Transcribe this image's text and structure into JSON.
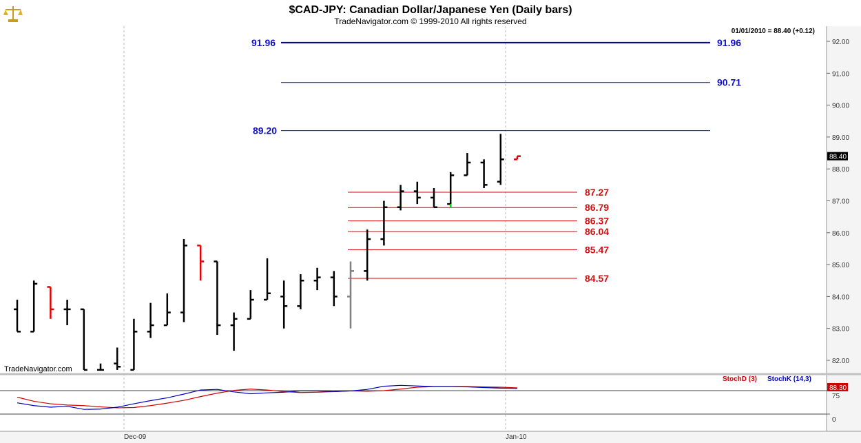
{
  "header": {
    "title": "$CAD-JPY:  Canadian Dollar/Japanese Yen  (Daily bars)",
    "subtitle": "TradeNavigator.com © 1999-2010 All rights reserved",
    "quote": "01/01/2010 = 88.40 (+0.12)",
    "watermark": "TradeNavigator.com",
    "logo_icon": "scales-icon"
  },
  "colors": {
    "bar_up": "#000000",
    "bar_down": "#e00000",
    "bar_neutral": "#808080",
    "bar_green": "#00e000",
    "resistance": "#0000a8",
    "support": "#e00000",
    "stoch_d": "#d00000",
    "stoch_k": "#0000c0"
  },
  "chart_data": {
    "type": "ohlc",
    "title": "$CAD-JPY:  Canadian Dollar/Japanese Yen  (Daily bars)",
    "price_axis": {
      "ylim": [
        81.6,
        92.3
      ],
      "ticks": [
        "92.00",
        "91.00",
        "90.00",
        "89.00",
        "88.00",
        "87.00",
        "86.00",
        "85.00",
        "84.00",
        "83.00",
        "82.00"
      ],
      "last_price_label": "88.40"
    },
    "x_axis": {
      "tick_labels": [
        "Dec-09",
        "Jan-10"
      ]
    },
    "bars": [
      {
        "o": 83.6,
        "h": 83.9,
        "l": 82.9,
        "c": 82.9,
        "color": "black"
      },
      {
        "o": 82.9,
        "h": 84.5,
        "l": 82.9,
        "c": 84.4,
        "color": "black"
      },
      {
        "o": 84.3,
        "h": 84.3,
        "l": 83.3,
        "c": 83.6,
        "color": "red"
      },
      {
        "o": 83.6,
        "h": 83.9,
        "l": 83.1,
        "c": 83.6,
        "color": "black"
      },
      {
        "o": 83.6,
        "h": 83.6,
        "l": 81.7,
        "c": 81.7,
        "color": "black"
      },
      {
        "o": 81.7,
        "h": 81.9,
        "l": 81.7,
        "c": 81.7,
        "color": "black"
      },
      {
        "o": 81.9,
        "h": 82.4,
        "l": 81.7,
        "c": 81.8,
        "color": "black"
      },
      {
        "o": 81.7,
        "h": 83.3,
        "l": 81.7,
        "c": 82.9,
        "color": "black"
      },
      {
        "o": 82.9,
        "h": 83.8,
        "l": 82.7,
        "c": 83.1,
        "color": "black"
      },
      {
        "o": 83.1,
        "h": 84.1,
        "l": 83.1,
        "c": 83.5,
        "color": "black"
      },
      {
        "o": 83.5,
        "h": 85.8,
        "l": 83.2,
        "c": 85.6,
        "color": "black"
      },
      {
        "o": 85.6,
        "h": 85.6,
        "l": 84.5,
        "c": 85.1,
        "color": "red"
      },
      {
        "o": 85.1,
        "h": 85.1,
        "l": 82.8,
        "c": 83.1,
        "color": "black"
      },
      {
        "o": 83.1,
        "h": 83.5,
        "l": 82.3,
        "c": 83.3,
        "color": "black"
      },
      {
        "o": 83.3,
        "h": 84.2,
        "l": 83.3,
        "c": 83.9,
        "color": "black"
      },
      {
        "o": 83.9,
        "h": 85.2,
        "l": 83.9,
        "c": 84.1,
        "color": "black"
      },
      {
        "o": 84.0,
        "h": 84.5,
        "l": 83.0,
        "c": 83.7,
        "color": "black"
      },
      {
        "o": 83.7,
        "h": 84.7,
        "l": 83.6,
        "c": 84.5,
        "color": "black"
      },
      {
        "o": 84.5,
        "h": 84.9,
        "l": 84.2,
        "c": 84.6,
        "color": "black"
      },
      {
        "o": 84.6,
        "h": 84.8,
        "l": 83.7,
        "c": 84.0,
        "color": "black"
      },
      {
        "o": 84.0,
        "h": 85.1,
        "l": 83.0,
        "c": 84.8,
        "color": "gray"
      },
      {
        "o": 84.8,
        "h": 86.1,
        "l": 84.5,
        "c": 85.8,
        "color": "black"
      },
      {
        "o": 85.8,
        "h": 87.0,
        "l": 85.6,
        "c": 86.8,
        "color": "black"
      },
      {
        "o": 86.8,
        "h": 87.5,
        "l": 86.7,
        "c": 87.3,
        "color": "black"
      },
      {
        "o": 87.3,
        "h": 87.6,
        "l": 86.9,
        "c": 87.1,
        "color": "black"
      },
      {
        "o": 87.1,
        "h": 87.4,
        "l": 86.8,
        "c": 86.8,
        "color": "black"
      },
      {
        "o": 86.9,
        "h": 87.9,
        "l": 86.8,
        "c": 87.8,
        "color": "black",
        "low_segment_color": "green"
      },
      {
        "o": 87.8,
        "h": 88.5,
        "l": 87.8,
        "c": 88.2,
        "color": "black"
      },
      {
        "o": 88.2,
        "h": 88.3,
        "l": 87.4,
        "c": 87.5,
        "color": "black"
      },
      {
        "o": 87.6,
        "h": 89.1,
        "l": 87.5,
        "c": 88.3,
        "color": "black"
      },
      {
        "o": 88.3,
        "h": 88.4,
        "l": 88.3,
        "c": 88.4,
        "color": "red"
      }
    ],
    "levels": [
      {
        "value": 91.96,
        "label": "91.96",
        "type": "resistance"
      },
      {
        "value": 90.71,
        "label": "90.71",
        "type": "resistance"
      },
      {
        "value": 89.2,
        "label": "89.20",
        "type": "resistance"
      },
      {
        "value": 87.27,
        "label": "87.27",
        "type": "support"
      },
      {
        "value": 86.79,
        "label": "86.79",
        "type": "support"
      },
      {
        "value": 86.37,
        "label": "86.37",
        "type": "support"
      },
      {
        "value": 86.04,
        "label": "86.04",
        "type": "support"
      },
      {
        "value": 85.47,
        "label": "85.47",
        "type": "support"
      },
      {
        "value": 84.57,
        "label": "84.57",
        "type": "support"
      }
    ],
    "stochastic": {
      "legend_d": "StochD (3)",
      "legend_k": "StochK (14,3)",
      "last_value_label": "88.30",
      "axis_tick_labels": [
        "75",
        "0"
      ],
      "ylim": [
        -10,
        110
      ],
      "stoch_d": [
        54,
        41,
        33,
        29,
        27,
        23,
        20,
        21,
        27,
        35,
        44,
        56,
        67,
        76,
        80,
        77,
        72,
        69,
        70,
        72,
        74,
        73,
        75,
        80,
        86,
        88,
        88,
        88,
        87,
        86,
        84
      ],
      "stoch_k": [
        36,
        27,
        22,
        25,
        15,
        16,
        22,
        33,
        43,
        52,
        64,
        77,
        79,
        71,
        65,
        68,
        70,
        74,
        74,
        72,
        74,
        79,
        89,
        92,
        90,
        88,
        88,
        87,
        85,
        83,
        82
      ]
    }
  }
}
